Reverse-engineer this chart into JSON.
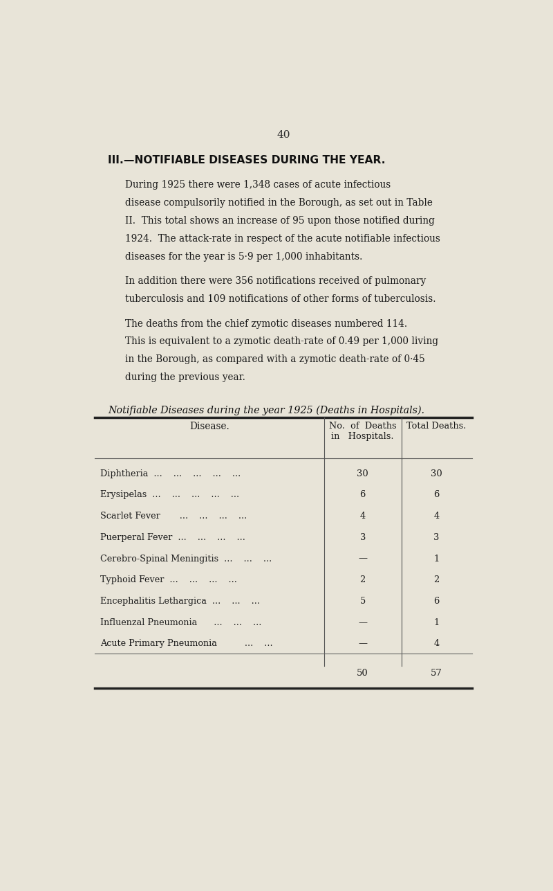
{
  "page_number": "40",
  "background_color": "#e8e4d8",
  "section_title": "III.—NOTIFIABLE DISEASES DURING THE YEAR.",
  "table_title": "Notifiable Diseases during the year 1925 (Deaths in Hospitals).",
  "col_headers": [
    "Disease.",
    "No. of Deaths\nin  Hospitals.",
    "Total Deaths."
  ],
  "diseases": [
    "Diphtheria",
    "Erysipelas",
    "Scarlet Fever",
    "Puerperal Fever",
    "Cerebro-Spinal Meningitis",
    "Typhoid Fever",
    "Encephalitis Lethargica",
    "Influenzal Pneumonia",
    "Acute Primary Pneumonia"
  ],
  "disease_dots": [
    "  ...    ...    ...    ...    ...",
    "  ...    ...    ...    ...    ...",
    "       ...    ...    ...    ...",
    "  ...    ...    ...    ...",
    "  ...    ...    ...",
    "  ...    ...    ...    ...",
    "  ...    ...    ...",
    "      ...    ...    ...",
    "          ...    ..."
  ],
  "hospital_deaths": [
    "30",
    "6",
    "4",
    "3",
    "—",
    "2",
    "5",
    "—",
    "—"
  ],
  "total_deaths": [
    "30",
    "6",
    "4",
    "3",
    "1",
    "2",
    "6",
    "1",
    "4"
  ],
  "totals": [
    "50",
    "57"
  ],
  "p1_lines": [
    "During 1925 there were 1,348 cases of acute infectious",
    "disease compulsorily notified in the Borough, as set out in Table",
    "II.  This total shows an increase of 95 upon those notified during",
    "1924.  The attack-rate in respect of the acute notifiable infectious",
    "diseases for the year is 5·9 per 1,000 inhabitants."
  ],
  "p2_lines": [
    "In addition there were 356 notifications received of pulmonary",
    "tuberculosis and 109 notifications of other forms of tuberculosis."
  ],
  "p3_lines": [
    "The deaths from the chief zymotic diseases numbered 114.",
    "This is equivalent to a zymotic death-rate of 0.49 per 1,000 living",
    "in the Borough, as compared with a zymotic death-rate of 0·45",
    "during the previous year."
  ]
}
